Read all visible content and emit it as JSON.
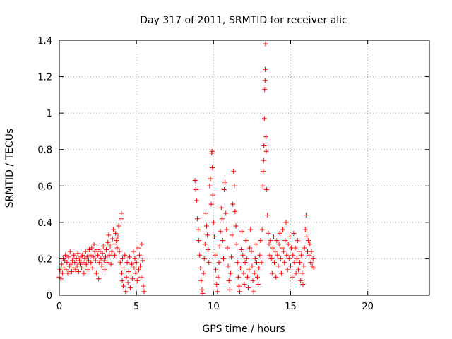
{
  "chart_data": {
    "type": "scatter",
    "title": "Day 317 of 2011, SRMTID for receiver alic",
    "xlabel": "GPS time / hours",
    "ylabel": "SRMTID / TECUs",
    "xlim": [
      0,
      24
    ],
    "ylim": [
      0,
      1.4
    ],
    "xticks": [
      0,
      5,
      10,
      15,
      20
    ],
    "yticks": [
      0,
      0.2,
      0.4,
      0.6,
      0.8,
      1,
      1.2,
      1.4
    ],
    "xtick_labels": [
      "0",
      "5",
      "10",
      "15",
      "20"
    ],
    "ytick_labels": [
      "0",
      "0.2",
      "0.4",
      "0.6",
      "0.8",
      "1",
      "1.2",
      "1.4"
    ],
    "grid": true,
    "marker": "+",
    "series": [
      {
        "name": "SRMTID",
        "color": "#ff0000",
        "points": [
          [
            0.0,
            0.1
          ],
          [
            0.05,
            0.14
          ],
          [
            0.1,
            0.09
          ],
          [
            0.15,
            0.17
          ],
          [
            0.2,
            0.12
          ],
          [
            0.25,
            0.2
          ],
          [
            0.3,
            0.15
          ],
          [
            0.35,
            0.19
          ],
          [
            0.4,
            0.22
          ],
          [
            0.45,
            0.14
          ],
          [
            0.5,
            0.18
          ],
          [
            0.55,
            0.12
          ],
          [
            0.6,
            0.21
          ],
          [
            0.65,
            0.16
          ],
          [
            0.7,
            0.24
          ],
          [
            0.75,
            0.17
          ],
          [
            0.8,
            0.13
          ],
          [
            0.85,
            0.19
          ],
          [
            0.9,
            0.15
          ],
          [
            0.95,
            0.22
          ],
          [
            1.0,
            0.18
          ],
          [
            1.05,
            0.14
          ],
          [
            1.1,
            0.2
          ],
          [
            1.15,
            0.16
          ],
          [
            1.2,
            0.23
          ],
          [
            1.25,
            0.13
          ],
          [
            1.3,
            0.19
          ],
          [
            1.35,
            0.17
          ],
          [
            1.4,
            0.21
          ],
          [
            1.45,
            0.15
          ],
          [
            1.5,
            0.22
          ],
          [
            1.55,
            0.18
          ],
          [
            1.6,
            0.12
          ],
          [
            1.65,
            0.2
          ],
          [
            1.7,
            0.24
          ],
          [
            1.75,
            0.17
          ],
          [
            1.8,
            0.21
          ],
          [
            1.85,
            0.14
          ],
          [
            1.9,
            0.19
          ],
          [
            1.95,
            0.25
          ],
          [
            2.0,
            0.22
          ],
          [
            2.05,
            0.18
          ],
          [
            2.1,
            0.26
          ],
          [
            2.15,
            0.15
          ],
          [
            2.2,
            0.21
          ],
          [
            2.25,
            0.28
          ],
          [
            2.3,
            0.24
          ],
          [
            2.35,
            0.19
          ],
          [
            2.4,
            0.12
          ],
          [
            2.45,
            0.25
          ],
          [
            2.5,
            0.22
          ],
          [
            2.55,
            0.09
          ],
          [
            2.6,
            0.18
          ],
          [
            2.65,
            0.24
          ],
          [
            2.7,
            0.2
          ],
          [
            2.75,
            0.16
          ],
          [
            2.8,
            0.23
          ],
          [
            2.85,
            0.27
          ],
          [
            2.9,
            0.19
          ],
          [
            2.95,
            0.14
          ],
          [
            3.0,
            0.21
          ],
          [
            3.05,
            0.25
          ],
          [
            3.1,
            0.18
          ],
          [
            3.15,
            0.29
          ],
          [
            3.2,
            0.33
          ],
          [
            3.25,
            0.22
          ],
          [
            3.3,
            0.27
          ],
          [
            3.35,
            0.17
          ],
          [
            3.4,
            0.24
          ],
          [
            3.45,
            0.31
          ],
          [
            3.5,
            0.36
          ],
          [
            3.55,
            0.28
          ],
          [
            3.6,
            0.22
          ],
          [
            3.65,
            0.34
          ],
          [
            3.7,
            0.3
          ],
          [
            3.75,
            0.26
          ],
          [
            3.8,
            0.32
          ],
          [
            3.85,
            0.38
          ],
          [
            3.9,
            0.24
          ],
          [
            3.95,
            0.18
          ],
          [
            4.0,
            0.42
          ],
          [
            4.02,
            0.45
          ],
          [
            4.05,
            0.12
          ],
          [
            4.08,
            0.08
          ],
          [
            4.1,
            0.2
          ],
          [
            4.15,
            0.05
          ],
          [
            4.2,
            0.15
          ],
          [
            4.25,
            0.22
          ],
          [
            4.3,
            0.02
          ],
          [
            4.35,
            0.1
          ],
          [
            4.4,
            0.18
          ],
          [
            4.45,
            0.07
          ],
          [
            4.5,
            0.13
          ],
          [
            4.55,
            0.21
          ],
          [
            4.6,
            0.04
          ],
          [
            4.65,
            0.11
          ],
          [
            4.7,
            0.17
          ],
          [
            4.75,
            0.09
          ],
          [
            4.8,
            0.24
          ],
          [
            4.85,
            0.15
          ],
          [
            4.9,
            0.2
          ],
          [
            4.95,
            0.12
          ],
          [
            5.0,
            0.18
          ],
          [
            5.05,
            0.08
          ],
          [
            5.1,
            0.26
          ],
          [
            5.15,
            0.14
          ],
          [
            5.2,
            0.22
          ],
          [
            5.25,
            0.16
          ],
          [
            5.3,
            0.1
          ],
          [
            5.35,
            0.28
          ],
          [
            5.4,
            0.19
          ],
          [
            5.45,
            0.05
          ],
          [
            5.5,
            0.02
          ],
          [
            8.8,
            0.63
          ],
          [
            8.85,
            0.58
          ],
          [
            8.9,
            0.52
          ],
          [
            8.95,
            0.42
          ],
          [
            9.0,
            0.36
          ],
          [
            9.05,
            0.3
          ],
          [
            9.1,
            0.22
          ],
          [
            9.15,
            0.15
          ],
          [
            9.2,
            0.08
          ],
          [
            9.25,
            0.03
          ],
          [
            9.3,
            0.01
          ],
          [
            9.35,
            0.12
          ],
          [
            9.4,
            0.2
          ],
          [
            9.45,
            0.28
          ],
          [
            9.5,
            0.45
          ],
          [
            9.55,
            0.38
          ],
          [
            9.6,
            0.33
          ],
          [
            9.65,
            0.25
          ],
          [
            9.7,
            0.18
          ],
          [
            9.75,
            0.6
          ],
          [
            9.8,
            0.64
          ],
          [
            9.85,
            0.5
          ],
          [
            9.88,
            0.78
          ],
          [
            9.9,
            0.79
          ],
          [
            9.92,
            0.7
          ],
          [
            9.95,
            0.55
          ],
          [
            10.0,
            0.4
          ],
          [
            10.05,
            0.32
          ],
          [
            10.1,
            0.22
          ],
          [
            10.15,
            0.14
          ],
          [
            10.2,
            0.06
          ],
          [
            10.25,
            0.02
          ],
          [
            10.3,
            0.1
          ],
          [
            10.35,
            0.18
          ],
          [
            10.4,
            0.27
          ],
          [
            10.45,
            0.35
          ],
          [
            10.5,
            0.48
          ],
          [
            10.55,
            0.42
          ],
          [
            10.6,
            0.3
          ],
          [
            10.65,
            0.2
          ],
          [
            10.7,
            0.58
          ],
          [
            10.75,
            0.62
          ],
          [
            10.8,
            0.45
          ],
          [
            10.85,
            0.36
          ],
          [
            10.9,
            0.26
          ],
          [
            10.95,
            0.16
          ],
          [
            11.0,
            0.08
          ],
          [
            11.05,
            0.03
          ],
          [
            11.1,
            0.12
          ],
          [
            11.15,
            0.21
          ],
          [
            11.2,
            0.33
          ],
          [
            11.25,
            0.5
          ],
          [
            11.3,
            0.68
          ],
          [
            11.35,
            0.6
          ],
          [
            11.4,
            0.46
          ],
          [
            11.45,
            0.38
          ],
          [
            11.5,
            0.28
          ],
          [
            11.55,
            0.18
          ],
          [
            11.6,
            0.1
          ],
          [
            11.65,
            0.05
          ],
          [
            11.7,
            0.02
          ],
          [
            11.75,
            0.15
          ],
          [
            11.8,
            0.25
          ],
          [
            11.85,
            0.35
          ],
          [
            11.9,
            0.22
          ],
          [
            11.95,
            0.12
          ],
          [
            12.0,
            0.06
          ],
          [
            12.05,
            0.18
          ],
          [
            12.1,
            0.3
          ],
          [
            12.15,
            0.2
          ],
          [
            12.2,
            0.1
          ],
          [
            12.25,
            0.04
          ],
          [
            12.3,
            0.14
          ],
          [
            12.35,
            0.26
          ],
          [
            12.4,
            0.36
          ],
          [
            12.45,
            0.24
          ],
          [
            12.5,
            0.16
          ],
          [
            12.55,
            0.08
          ],
          [
            12.6,
            0.02
          ],
          [
            12.65,
            0.12
          ],
          [
            12.7,
            0.2
          ],
          [
            12.75,
            0.28
          ],
          [
            12.8,
            0.18
          ],
          [
            12.85,
            0.1
          ],
          [
            12.9,
            0.06
          ],
          [
            12.95,
            0.15
          ],
          [
            13.0,
            0.22
          ],
          [
            13.05,
            0.3
          ],
          [
            13.1,
            0.18
          ],
          [
            13.15,
            0.36
          ],
          [
            13.2,
            0.6
          ],
          [
            13.22,
            0.68
          ],
          [
            13.25,
            0.74
          ],
          [
            13.27,
            0.82
          ],
          [
            13.3,
            0.97
          ],
          [
            13.32,
            1.13
          ],
          [
            13.34,
            1.18
          ],
          [
            13.35,
            1.24
          ],
          [
            13.37,
            1.38
          ],
          [
            13.4,
            0.87
          ],
          [
            13.42,
            0.79
          ],
          [
            13.45,
            0.58
          ],
          [
            13.5,
            0.44
          ],
          [
            13.55,
            0.34
          ],
          [
            13.6,
            0.28
          ],
          [
            13.65,
            0.22
          ],
          [
            13.7,
            0.3
          ],
          [
            13.75,
            0.2
          ],
          [
            13.8,
            0.12
          ],
          [
            13.85,
            0.26
          ],
          [
            13.9,
            0.32
          ],
          [
            13.95,
            0.18
          ],
          [
            14.0,
            0.24
          ],
          [
            14.05,
            0.1
          ],
          [
            14.1,
            0.3
          ],
          [
            14.15,
            0.22
          ],
          [
            14.2,
            0.16
          ],
          [
            14.25,
            0.28
          ],
          [
            14.3,
            0.34
          ],
          [
            14.35,
            0.2
          ],
          [
            14.4,
            0.12
          ],
          [
            14.45,
            0.26
          ],
          [
            14.5,
            0.36
          ],
          [
            14.55,
            0.24
          ],
          [
            14.6,
            0.18
          ],
          [
            14.65,
            0.3
          ],
          [
            14.7,
            0.4
          ],
          [
            14.75,
            0.22
          ],
          [
            14.8,
            0.14
          ],
          [
            14.85,
            0.28
          ],
          [
            14.9,
            0.2
          ],
          [
            14.95,
            0.32
          ],
          [
            15.0,
            0.16
          ],
          [
            15.05,
            0.26
          ],
          [
            15.1,
            0.1
          ],
          [
            15.15,
            0.22
          ],
          [
            15.2,
            0.34
          ],
          [
            15.25,
            0.18
          ],
          [
            15.3,
            0.26
          ],
          [
            15.35,
            0.12
          ],
          [
            15.4,
            0.2
          ],
          [
            15.45,
            0.3
          ],
          [
            15.5,
            0.14
          ],
          [
            15.55,
            0.24
          ],
          [
            15.6,
            0.18
          ],
          [
            15.65,
            0.08
          ],
          [
            15.7,
            0.22
          ],
          [
            15.75,
            0.12
          ],
          [
            15.8,
            0.06
          ],
          [
            15.85,
            0.16
          ],
          [
            15.9,
            0.26
          ],
          [
            15.95,
            0.36
          ],
          [
            16.0,
            0.44
          ],
          [
            16.05,
            0.32
          ],
          [
            16.1,
            0.24
          ],
          [
            16.15,
            0.3
          ],
          [
            16.2,
            0.22
          ],
          [
            16.25,
            0.28
          ],
          [
            16.3,
            0.18
          ],
          [
            16.35,
            0.24
          ],
          [
            16.4,
            0.16
          ],
          [
            16.45,
            0.2
          ],
          [
            16.5,
            0.15
          ]
        ]
      }
    ]
  }
}
